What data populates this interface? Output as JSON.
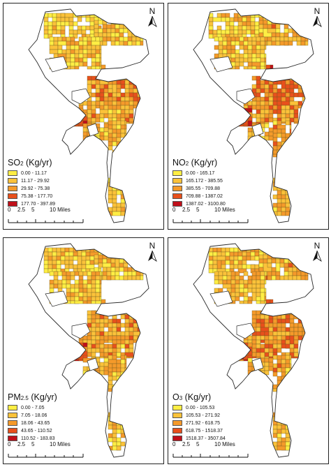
{
  "colors": {
    "class1": "#ffee44",
    "class2": "#fbc23a",
    "class3": "#f59a2a",
    "class4": "#e8501c",
    "class5": "#c0101a",
    "outline": "#2a2a2a"
  },
  "north_label": "N",
  "scale_bar": {
    "ticks": [
      "0",
      "2.5",
      "5",
      "10 Miles"
    ]
  },
  "panels": [
    {
      "pollutant": "SO",
      "subscript": "2",
      "unit": " (Kg/yr)",
      "legend": [
        "0.00 - 11.17",
        "11.17 - 29.92",
        "29.92 - 75.38",
        "75.38 - 177.70",
        "177.70 - 397.89"
      ]
    },
    {
      "pollutant": "NO",
      "subscript": "2",
      "unit": " (Kg/yr)",
      "legend": [
        "0.00 - 165.17",
        "165.172 - 385.55",
        "385.55 - 709.88",
        "709.88 - 1387.02",
        "1387.02 - 3100.80"
      ]
    },
    {
      "pollutant": "PM",
      "subscript": "2.5",
      "unit": " (Kg/yr)",
      "legend": [
        "0.00 - 7.05",
        "7.05 - 18.06",
        "18.06 - 43.65",
        "43.65 - 110.52",
        "110.52 - 183.83"
      ]
    },
    {
      "pollutant": "O",
      "subscript": "3",
      "unit": " (Kg/yr)",
      "legend": [
        "0.00 - 105.53",
        "105.53 - 271.92",
        "271.92 - 618.75",
        "618.75 - 1518.37",
        "1518.37 - 3507.84"
      ]
    }
  ]
}
